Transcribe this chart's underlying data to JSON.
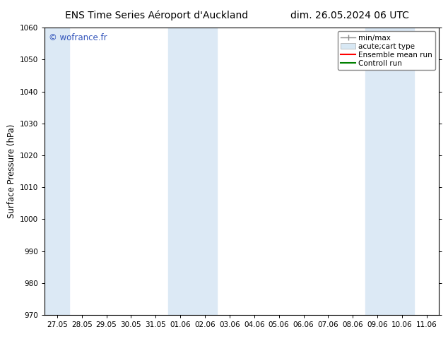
{
  "title_left": "ENS Time Series Aéroport d'Auckland",
  "title_right": "dim. 26.05.2024 06 UTC",
  "ylabel": "Surface Pressure (hPa)",
  "ylim": [
    970,
    1060
  ],
  "yticks": [
    970,
    980,
    990,
    1000,
    1010,
    1020,
    1030,
    1040,
    1050,
    1060
  ],
  "xtick_labels": [
    "27.05",
    "28.05",
    "29.05",
    "30.05",
    "31.05",
    "01.06",
    "02.06",
    "03.06",
    "04.06",
    "05.06",
    "06.06",
    "07.06",
    "08.06",
    "09.06",
    "10.06",
    "11.06"
  ],
  "background_color": "#ffffff",
  "plot_bg_color": "#ffffff",
  "shaded_bands": [
    {
      "xstart": -0.5,
      "xend": 0.5,
      "color": "#dce9f5"
    },
    {
      "xstart": 4.5,
      "xend": 6.5,
      "color": "#dce9f5"
    },
    {
      "xstart": 12.5,
      "xend": 14.5,
      "color": "#dce9f5"
    }
  ],
  "watermark_text": "© wofrance.fr",
  "watermark_color": "#3355bb",
  "legend_items": [
    {
      "label": "min/max",
      "color": "#aaaaaa",
      "lw": 1.5
    },
    {
      "label": "acute;cart type",
      "color": "#cccccc",
      "lw": 6
    },
    {
      "label": "Ensemble mean run",
      "color": "#ff0000",
      "lw": 1.5
    },
    {
      "label": "Controll run",
      "color": "#008000",
      "lw": 1.5
    }
  ],
  "title_fontsize": 10,
  "tick_fontsize": 7.5,
  "label_fontsize": 8.5,
  "watermark_fontsize": 8.5,
  "legend_fontsize": 7.5
}
